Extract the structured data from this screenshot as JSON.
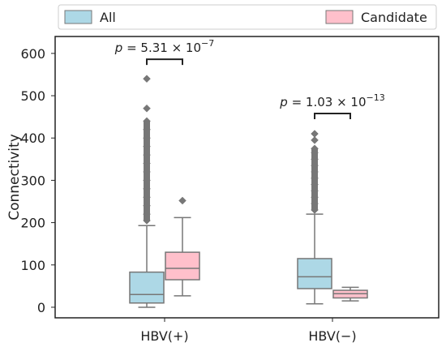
{
  "chart_data": {
    "type": "boxplot",
    "title": "",
    "xlabel": "",
    "ylabel": "Connectivity",
    "ylim": [
      -25,
      640
    ],
    "yticks": [
      0,
      100,
      200,
      300,
      400,
      500,
      600
    ],
    "ytick_labels": [
      "0",
      "100",
      "200",
      "300",
      "400",
      "500",
      "600"
    ],
    "categories": [
      "HBV(+)",
      "HBV(−)"
    ],
    "legend": {
      "placement": "top",
      "entries": [
        {
          "name": "All",
          "color": "#add8e6"
        },
        {
          "name": "Candidate",
          "color": "#ffc0cb"
        }
      ]
    },
    "series": [
      {
        "name": "All",
        "color": "#add8e6",
        "boxes": [
          {
            "category": "HBV(+)",
            "min": 0,
            "q1": 10,
            "median": 30,
            "q3": 83,
            "max": 193,
            "outliers": [
              205,
              220,
              240,
              260,
              280,
              300,
              320,
              340,
              360,
              380,
              400,
              420,
              440,
              470,
              540
            ]
          },
          {
            "category": "HBV(−)",
            "min": 8,
            "q1": 44,
            "median": 72,
            "q3": 115,
            "max": 220,
            "outliers": [
              230,
              245,
              260,
              275,
              290,
              305,
              320,
              335,
              350,
              365,
              375,
              395,
              410
            ]
          }
        ]
      },
      {
        "name": "Candidate",
        "color": "#ffc0cb",
        "boxes": [
          {
            "category": "HBV(+)",
            "min": 27,
            "q1": 65,
            "median": 92,
            "q3": 130,
            "max": 212,
            "outliers": [
              252
            ]
          },
          {
            "category": "HBV(−)",
            "min": 15,
            "q1": 22,
            "median": 32,
            "q3": 40,
            "max": 47,
            "outliers": []
          }
        ]
      }
    ],
    "annotations": [
      {
        "category": "HBV(+)",
        "label_prefix": "p",
        "label_value": " = 5.31 × 10",
        "label_exp": "−7",
        "bracket_y": 586
      },
      {
        "category": "HBV(−)",
        "label_prefix": "p",
        "label_value": " = 1.03 × 10",
        "label_exp": "−13",
        "bracket_y": 458
      }
    ]
  },
  "colors": {
    "whisker": "#777777",
    "axis": "#222222",
    "legend_border": "#cccccc"
  }
}
